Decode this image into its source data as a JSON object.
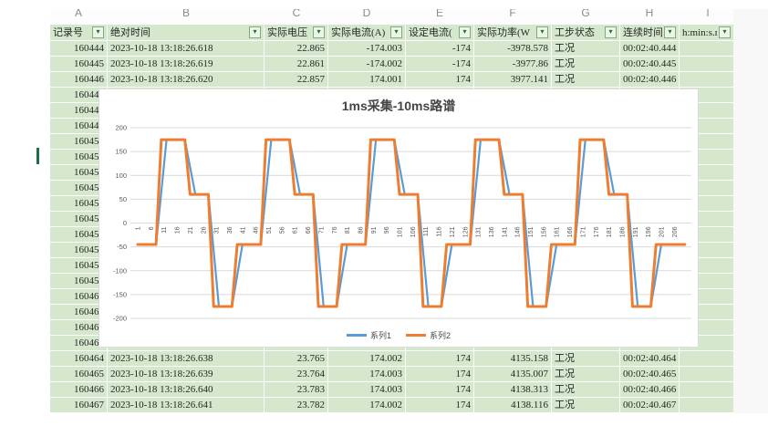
{
  "sheet": {
    "column_letters": [
      "A",
      "B",
      "C",
      "D",
      "E",
      "F",
      "G",
      "H",
      "I"
    ],
    "filter_glyph": "▾",
    "columns": [
      {
        "key": "id",
        "label": "记录号",
        "align": "num"
      },
      {
        "key": "time",
        "label": "绝对时间",
        "align": "left"
      },
      {
        "key": "voltage",
        "label": "实际电压",
        "align": "num"
      },
      {
        "key": "current",
        "label": "实际电流(A)",
        "align": "num"
      },
      {
        "key": "set_current",
        "label": "设定电流(",
        "align": "num"
      },
      {
        "key": "power",
        "label": "实际功率(W",
        "align": "num"
      },
      {
        "key": "status",
        "label": "工步状态",
        "align": "left"
      },
      {
        "key": "duration",
        "label": "连续时间",
        "align": "left"
      },
      {
        "key": "extra",
        "label": "h:min:s.ms",
        "align": "left"
      }
    ],
    "rows": [
      {
        "id": "160444",
        "time": "2023-10-18 13:18:26.618",
        "voltage": "22.865",
        "current": "-174.003",
        "set_current": "-174",
        "power": "-3978.578",
        "status": "工况",
        "duration": "00:02:40.444",
        "extra": ""
      },
      {
        "id": "160445",
        "time": "2023-10-18 13:18:26.619",
        "voltage": "22.861",
        "current": "-174.002",
        "set_current": "-174",
        "power": "-3977.86",
        "status": "工况",
        "duration": "00:02:40.445",
        "extra": ""
      },
      {
        "id": "160446",
        "time": "2023-10-18 13:18:26.620",
        "voltage": "22.857",
        "current": "174.001",
        "set_current": "174",
        "power": "3977.141",
        "status": "工况",
        "duration": "00:02:40.446",
        "extra": ""
      },
      {
        "id": "160447",
        "time": "",
        "voltage": "",
        "current": "",
        "set_current": "",
        "power": "",
        "status": "",
        "duration": "",
        "extra": ""
      },
      {
        "id": "160448",
        "time": "",
        "voltage": "",
        "current": "",
        "set_current": "",
        "power": "",
        "status": "",
        "duration": "",
        "extra": ""
      },
      {
        "id": "160449",
        "time": "",
        "voltage": "",
        "current": "",
        "set_current": "",
        "power": "",
        "status": "",
        "duration": "",
        "extra": ""
      },
      {
        "id": "160450",
        "time": "",
        "voltage": "",
        "current": "",
        "set_current": "",
        "power": "",
        "status": "",
        "duration": "",
        "extra": ""
      },
      {
        "id": "160451",
        "time": "",
        "voltage": "",
        "current": "",
        "set_current": "",
        "power": "",
        "status": "",
        "duration": "",
        "extra": ""
      },
      {
        "id": "160452",
        "time": "",
        "voltage": "",
        "current": "",
        "set_current": "",
        "power": "",
        "status": "",
        "duration": "",
        "extra": ""
      },
      {
        "id": "160453",
        "time": "",
        "voltage": "",
        "current": "",
        "set_current": "",
        "power": "",
        "status": "",
        "duration": "",
        "extra": ""
      },
      {
        "id": "160454",
        "time": "",
        "voltage": "",
        "current": "",
        "set_current": "",
        "power": "",
        "status": "",
        "duration": "",
        "extra": ""
      },
      {
        "id": "160455",
        "time": "",
        "voltage": "",
        "current": "",
        "set_current": "",
        "power": "",
        "status": "",
        "duration": "",
        "extra": ""
      },
      {
        "id": "160456",
        "time": "",
        "voltage": "",
        "current": "",
        "set_current": "",
        "power": "",
        "status": "",
        "duration": "",
        "extra": ""
      },
      {
        "id": "160457",
        "time": "",
        "voltage": "",
        "current": "",
        "set_current": "",
        "power": "",
        "status": "",
        "duration": "",
        "extra": ""
      },
      {
        "id": "160458",
        "time": "",
        "voltage": "",
        "current": "",
        "set_current": "",
        "power": "",
        "status": "",
        "duration": "",
        "extra": ""
      },
      {
        "id": "160459",
        "time": "",
        "voltage": "",
        "current": "",
        "set_current": "",
        "power": "",
        "status": "",
        "duration": "",
        "extra": ""
      },
      {
        "id": "160460",
        "time": "",
        "voltage": "",
        "current": "",
        "set_current": "",
        "power": "",
        "status": "",
        "duration": "",
        "extra": ""
      },
      {
        "id": "160461",
        "time": "",
        "voltage": "",
        "current": "",
        "set_current": "",
        "power": "",
        "status": "",
        "duration": "",
        "extra": ""
      },
      {
        "id": "160462",
        "time": "",
        "voltage": "",
        "current": "",
        "set_current": "",
        "power": "",
        "status": "",
        "duration": "",
        "extra": ""
      },
      {
        "id": "160463",
        "time": "",
        "voltage": "",
        "current": "",
        "set_current": "",
        "power": "",
        "status": "",
        "duration": "",
        "extra": ""
      },
      {
        "id": "160464",
        "time": "2023-10-18 13:18:26.638",
        "voltage": "23.765",
        "current": "174.002",
        "set_current": "174",
        "power": "4135.158",
        "status": "工况",
        "duration": "00:02:40.464",
        "extra": ""
      },
      {
        "id": "160465",
        "time": "2023-10-18 13:18:26.639",
        "voltage": "23.764",
        "current": "174.003",
        "set_current": "174",
        "power": "4135.007",
        "status": "工况",
        "duration": "00:02:40.465",
        "extra": ""
      },
      {
        "id": "160466",
        "time": "2023-10-18 13:18:26.640",
        "voltage": "23.783",
        "current": "174.003",
        "set_current": "174",
        "power": "4138.313",
        "status": "工况",
        "duration": "00:02:40.466",
        "extra": ""
      },
      {
        "id": "160467",
        "time": "2023-10-18 13:18:26.641",
        "voltage": "23.782",
        "current": "174.002",
        "set_current": "174",
        "power": "4138.116",
        "status": "工况",
        "duration": "00:02:40.467",
        "extra": ""
      }
    ]
  },
  "chart": {
    "title": "1ms采集-10ms路谱",
    "y_ticks": [
      200,
      150,
      100,
      50,
      0,
      -50,
      -100,
      -150,
      -200
    ],
    "x_tick_labels": [
      1,
      6,
      11,
      16,
      21,
      26,
      31,
      36,
      41,
      46,
      51,
      56,
      61,
      66,
      71,
      76,
      81,
      86,
      91,
      96,
      101,
      106,
      111,
      116,
      121,
      126,
      131,
      136,
      141,
      146,
      151,
      156,
      161,
      166,
      171,
      176,
      181,
      186,
      191,
      196,
      201,
      206
    ],
    "grid_color": "#d9d9d9",
    "label_color": "#595959"
  },
  "chart_data": {
    "type": "line",
    "title": "1ms采集-10ms路谱",
    "xlabel": "",
    "ylabel": "",
    "ylim": [
      -200,
      200
    ],
    "x_range": [
      1,
      210
    ],
    "legend_position": "bottom",
    "note": "square-wave road profile; each series given as plateau segments [startSample,endSample,value], linear ramps connect consecutive plateaus",
    "series": [
      {
        "name": "系列1",
        "color": "#5B9BD5",
        "plateaus": [
          [
            1,
            8,
            -45
          ],
          [
            12,
            19,
            175
          ],
          [
            23,
            28,
            60
          ],
          [
            32,
            37,
            -175
          ],
          [
            41,
            48,
            -45
          ],
          [
            52,
            59,
            175
          ],
          [
            63,
            68,
            60
          ],
          [
            72,
            77,
            -175
          ],
          [
            81,
            88,
            -45
          ],
          [
            92,
            99,
            175
          ],
          [
            103,
            108,
            60
          ],
          [
            112,
            117,
            -175
          ],
          [
            121,
            128,
            -45
          ],
          [
            132,
            139,
            175
          ],
          [
            143,
            148,
            60
          ],
          [
            152,
            157,
            -175
          ],
          [
            161,
            168,
            -45
          ],
          [
            172,
            179,
            175
          ],
          [
            183,
            188,
            60
          ],
          [
            192,
            197,
            -175
          ],
          [
            201,
            210,
            -45
          ]
        ]
      },
      {
        "name": "系列2",
        "color": "#ED7D31",
        "plateaus": [
          [
            1,
            8,
            -45
          ],
          [
            10,
            19,
            175
          ],
          [
            21,
            28,
            60
          ],
          [
            30,
            37,
            -175
          ],
          [
            39,
            48,
            -45
          ],
          [
            50,
            59,
            175
          ],
          [
            61,
            68,
            60
          ],
          [
            70,
            77,
            -175
          ],
          [
            79,
            88,
            -45
          ],
          [
            90,
            99,
            175
          ],
          [
            101,
            108,
            60
          ],
          [
            110,
            117,
            -175
          ],
          [
            119,
            128,
            -45
          ],
          [
            130,
            139,
            175
          ],
          [
            141,
            148,
            60
          ],
          [
            150,
            157,
            -175
          ],
          [
            159,
            168,
            -45
          ],
          [
            170,
            179,
            175
          ],
          [
            181,
            188,
            60
          ],
          [
            190,
            197,
            -175
          ],
          [
            199,
            210,
            -45
          ]
        ]
      }
    ]
  }
}
